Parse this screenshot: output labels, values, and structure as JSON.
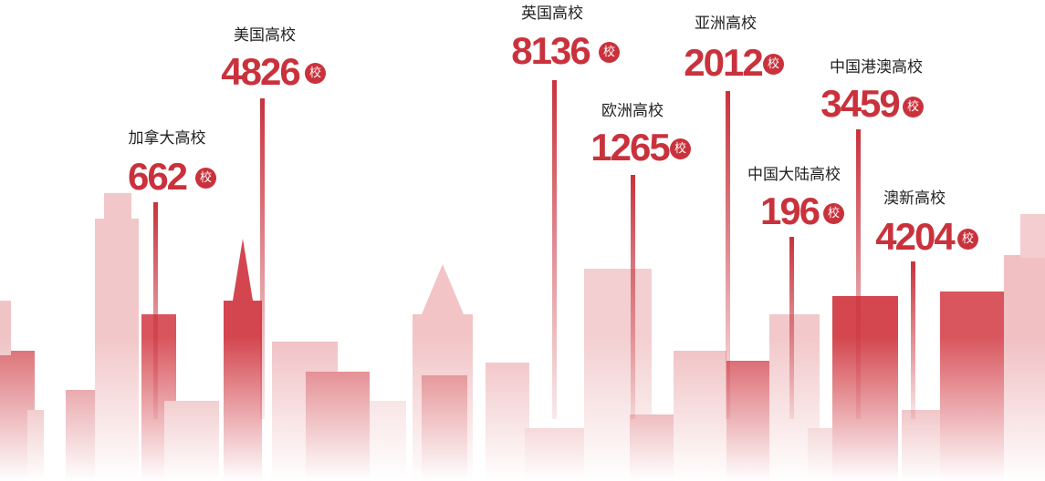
{
  "unit": "校",
  "items": [
    {
      "label": "加拿大高校",
      "value": 662
    },
    {
      "label": "美国高校",
      "value": 4826
    },
    {
      "label": "英国高校",
      "value": 8136
    },
    {
      "label": "欧洲高校",
      "value": 1265
    },
    {
      "label": "亚洲高校",
      "value": 2012
    },
    {
      "label": "中国大陆高校",
      "value": 196
    },
    {
      "label": "中国港澳高校",
      "value": 3459
    },
    {
      "label": "澳新高校",
      "value": 4204
    }
  ]
}
